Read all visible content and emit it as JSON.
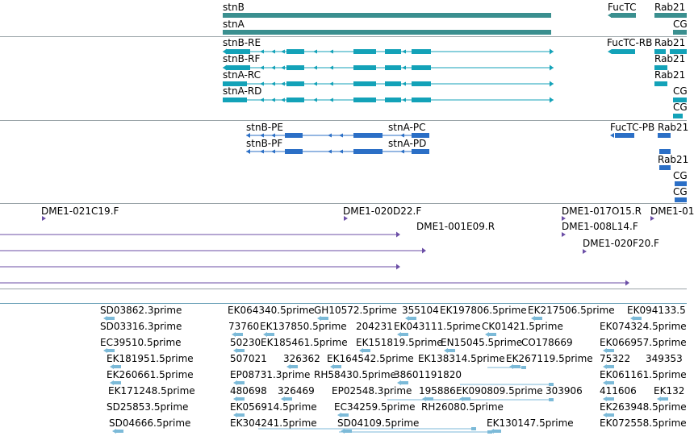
{
  "colors": {
    "gene": "#3a8f8f",
    "transcript": "#13a2b8",
    "protein": "#2b6fc6",
    "clone": "#6b4ea6",
    "est": "#7cbad8"
  },
  "tracks": {
    "genes": [
      {
        "label": "stnB"
      },
      {
        "label": "stnA"
      },
      {
        "label": "FucTC"
      },
      {
        "label": "Rab21"
      },
      {
        "label": "CG"
      }
    ],
    "transcripts": [
      {
        "label": "stnB-RE"
      },
      {
        "label": "stnB-RF"
      },
      {
        "label": "stnA-RC"
      },
      {
        "label": "stnA-RD"
      },
      {
        "label": "FucTC-RB"
      },
      {
        "label": "Rab21"
      },
      {
        "label": "Rab21"
      },
      {
        "label": "Rab21"
      },
      {
        "label": "CG"
      },
      {
        "label": "CG"
      }
    ],
    "proteins": [
      {
        "label": "stnB-PE"
      },
      {
        "label": "stnB-PF"
      },
      {
        "label": "stnA-PC"
      },
      {
        "label": "stnA-PD"
      },
      {
        "label": "FucTC-PB"
      },
      {
        "label": "Rab21"
      },
      {
        "label": "Rab21"
      },
      {
        "label": "CG"
      },
      {
        "label": "CG"
      }
    ],
    "clones": [
      {
        "label": "DME1-021C19.F"
      },
      {
        "label": "DME1-020D22.F"
      },
      {
        "label": "DME1-001E09.R"
      },
      {
        "label": "DME1-017O15.R"
      },
      {
        "label": "DME1-01"
      },
      {
        "label": "DME1-008L14.F"
      },
      {
        "label": "DME1-020F20.F"
      }
    ],
    "ests": [
      {
        "label": "SD03862.3prime"
      },
      {
        "label": "EK064340.5prime"
      },
      {
        "label": "GH10572.5prime"
      },
      {
        "label": "355104"
      },
      {
        "label": "EK197806.5prime"
      },
      {
        "label": "EK217506.5prime"
      },
      {
        "label": "EK094133.5"
      },
      {
        "label": "SD03316.3prime"
      },
      {
        "label": "73760"
      },
      {
        "label": "EK137850.5prime"
      },
      {
        "label": "204231"
      },
      {
        "label": "EK043111.5prime"
      },
      {
        "label": "CK01421.5prime"
      },
      {
        "label": "EK074324.5prime"
      },
      {
        "label": "EC39510.5prime"
      },
      {
        "label": "50230"
      },
      {
        "label": "EK185461.5prime"
      },
      {
        "label": "EK151819.5prime"
      },
      {
        "label": "EN15045.5prime"
      },
      {
        "label": "CO178669"
      },
      {
        "label": "EK066957.5prime"
      },
      {
        "label": "EK181951.5prime"
      },
      {
        "label": "507021"
      },
      {
        "label": "326362"
      },
      {
        "label": "EK164542.5prime"
      },
      {
        "label": "EK138314.5prime"
      },
      {
        "label": "EK267119.5prime"
      },
      {
        "label": "75322"
      },
      {
        "label": "349353"
      },
      {
        "label": "EK260661.5prime"
      },
      {
        "label": "EP08731.3prime"
      },
      {
        "label": "RH58430.5prime"
      },
      {
        "label": "38601191820"
      },
      {
        "label": "EK061161.5prime"
      },
      {
        "label": "EK171248.5prime"
      },
      {
        "label": "480698"
      },
      {
        "label": "326469"
      },
      {
        "label": "EP02548.3prime"
      },
      {
        "label": "195886"
      },
      {
        "label": "EK090809.5prime"
      },
      {
        "label": "303906"
      },
      {
        "label": "411606"
      },
      {
        "label": "EK132"
      },
      {
        "label": "SD25853.5prime"
      },
      {
        "label": "EK056914.5prime"
      },
      {
        "label": "EC34259.5prime"
      },
      {
        "label": "RH26080.5prime"
      },
      {
        "label": "EK263948.5prime"
      },
      {
        "label": "SD04666.5prime"
      },
      {
        "label": "EK304241.5prime"
      },
      {
        "label": "SD04109.5prime"
      },
      {
        "label": "EK130147.5prime"
      },
      {
        "label": "EK072558.5prime"
      }
    ]
  }
}
